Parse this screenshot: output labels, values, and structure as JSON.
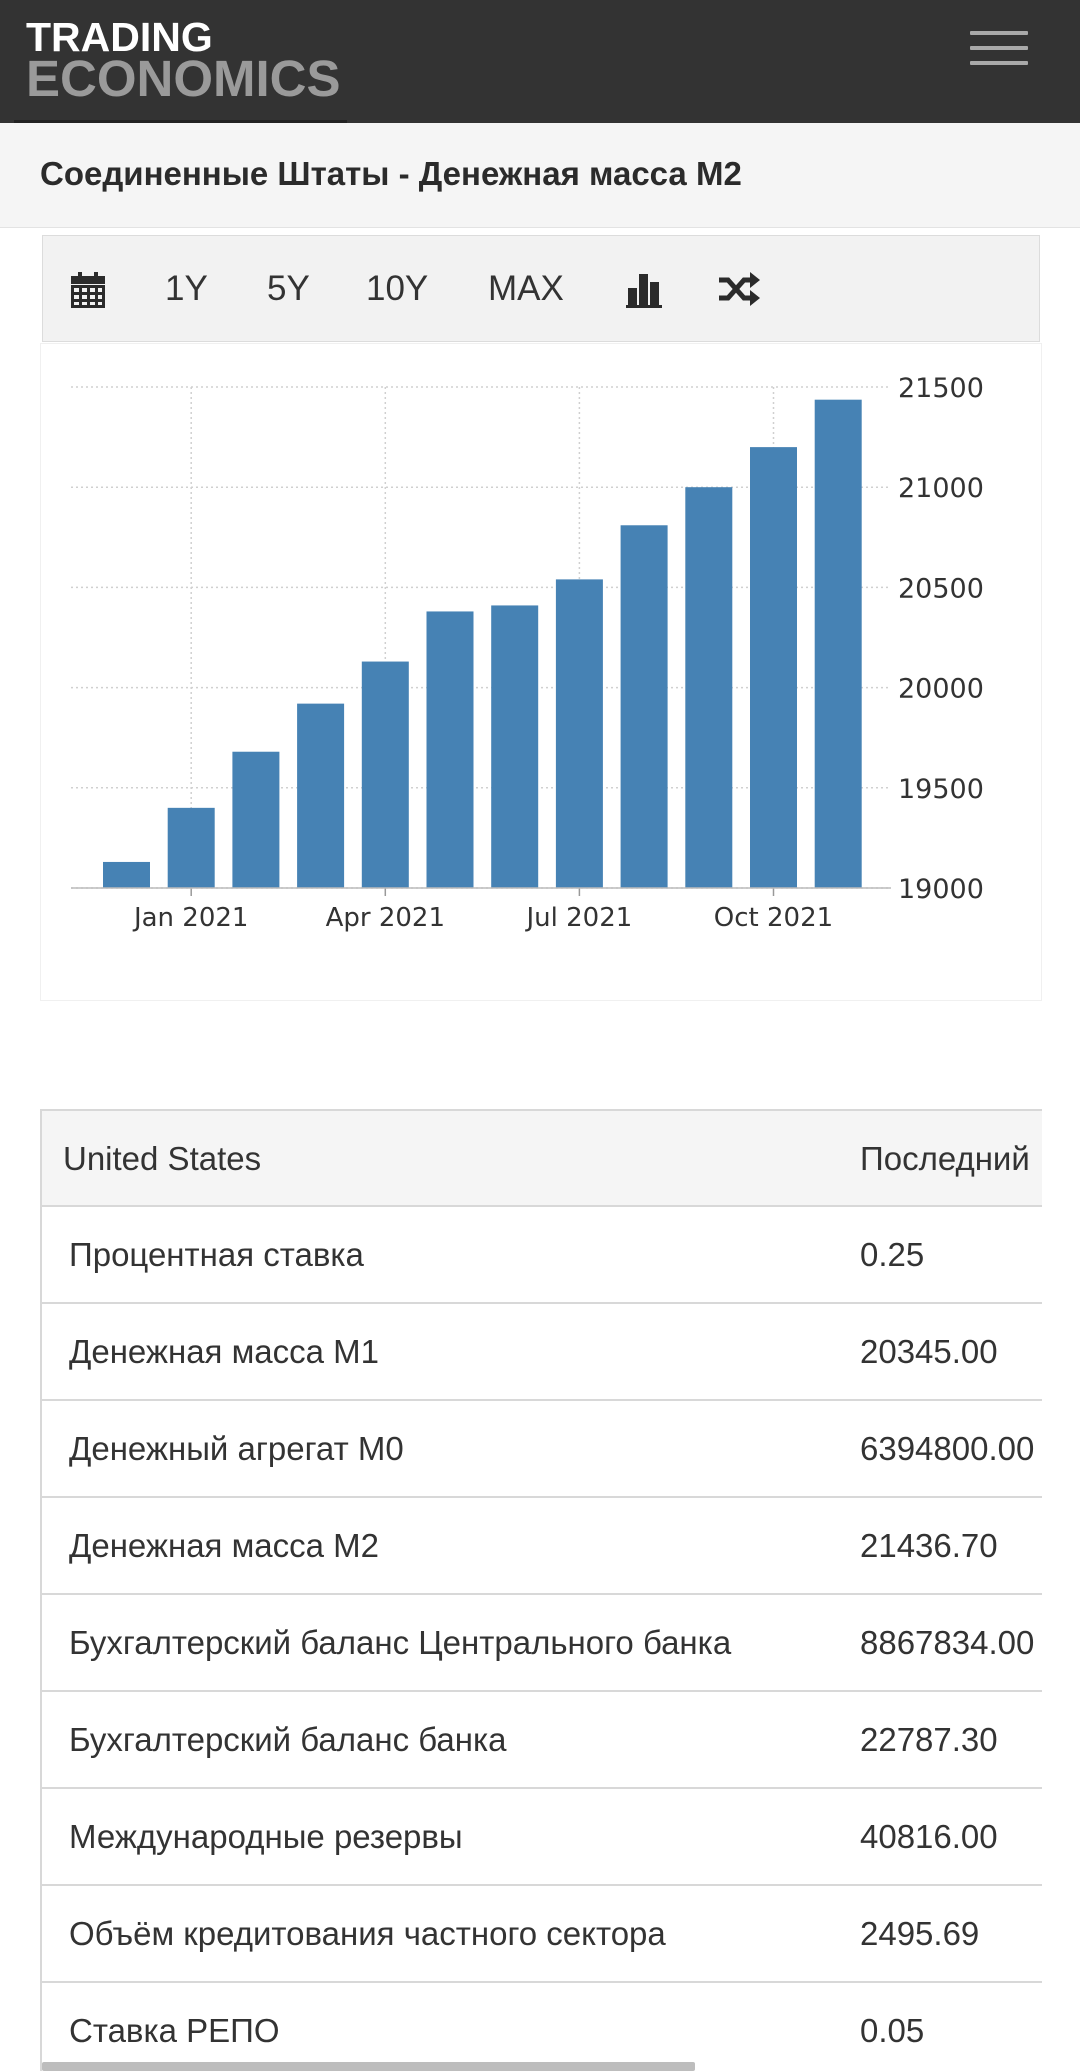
{
  "header": {
    "logo_line1": "TRADING",
    "logo_line2": "ECONOMICS",
    "menu_icon": "hamburger-menu-icon"
  },
  "page": {
    "title": "Соединенные Штаты - Денежная масса M2"
  },
  "toolbar": {
    "calendar_icon": "calendar-icon",
    "range_1y": "1Y",
    "range_5y": "5Y",
    "range_10y": "10Y",
    "range_max": "MAX",
    "bar_chart_icon": "bar-chart-icon",
    "shuffle_icon": "shuffle-icon"
  },
  "chart_data": {
    "type": "bar",
    "categories": [
      "2020-12",
      "2021-01",
      "2021-02",
      "2021-03",
      "2021-04",
      "2021-05",
      "2021-06",
      "2021-07",
      "2021-08",
      "2021-09",
      "2021-10",
      "2021-11"
    ],
    "values": [
      19130,
      19400,
      19680,
      19920,
      20130,
      20380,
      20410,
      20540,
      20810,
      21000,
      21200,
      21436.7
    ],
    "x_tick_labels": [
      "Jan 2021",
      "Apr 2021",
      "Jul 2021",
      "Oct 2021"
    ],
    "y_ticks": [
      19000,
      19500,
      20000,
      20500,
      21000,
      21500
    ],
    "ylim": [
      19000,
      21500
    ],
    "y_axis_side": "right",
    "grid": true,
    "bar_color": "#4682b4",
    "grid_color": "#d0d0d0"
  },
  "table": {
    "headers": [
      "United States",
      "Последний"
    ],
    "rows": [
      [
        "Процентная ставка",
        "0.25"
      ],
      [
        "Денежная масса M1",
        "20345.00"
      ],
      [
        "Денежный агрегат M0",
        "6394800.00"
      ],
      [
        "Денежная масса M2",
        "21436.70"
      ],
      [
        "Бухгалтерский баланс Центрального банка",
        "8867834.00"
      ],
      [
        "Бухгалтерский баланс банка",
        "22787.30"
      ],
      [
        "Международные резервы",
        "40816.00"
      ],
      [
        "Объём кредитования частного сектора",
        "2495.69"
      ],
      [
        "Ставка РЕПО",
        "0.05"
      ]
    ]
  },
  "colors": {
    "topbar": "#333333",
    "title_bg": "#f5f5f5",
    "bar": "#4682b4"
  }
}
